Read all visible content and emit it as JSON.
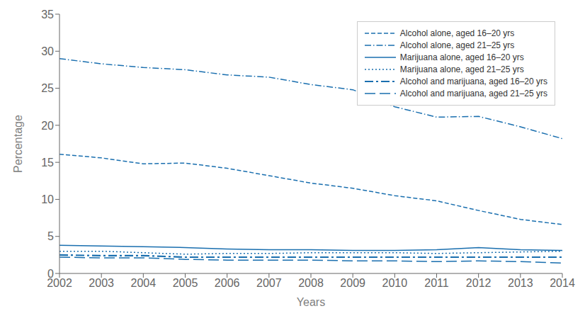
{
  "chart_data": {
    "type": "line",
    "xlabel": "Years",
    "ylabel": "Percentage",
    "x": [
      2002,
      2003,
      2004,
      2005,
      2006,
      2007,
      2008,
      2009,
      2010,
      2011,
      2012,
      2013,
      2014
    ],
    "xlim": [
      2002,
      2014
    ],
    "xticks": [
      2002,
      2003,
      2004,
      2005,
      2006,
      2007,
      2008,
      2009,
      2010,
      2011,
      2012,
      2013,
      2014
    ],
    "ylim": [
      0,
      35
    ],
    "yticks": [
      0,
      5,
      10,
      15,
      20,
      25,
      30,
      35
    ],
    "legend": "upper right",
    "series": [
      {
        "name": "Alcohol alone, aged 16–20 yrs",
        "color": "#1a6faf",
        "line_style": "dashed",
        "values": [
          16.1,
          15.6,
          14.8,
          14.9,
          14.2,
          13.2,
          12.2,
          11.5,
          10.5,
          9.8,
          8.5,
          7.3,
          6.6
        ]
      },
      {
        "name": "Alcohol alone, aged 21–25 yrs",
        "color": "#1a6faf",
        "line_style": "dashdot",
        "values": [
          29.0,
          28.3,
          27.8,
          27.5,
          26.8,
          26.5,
          25.5,
          24.8,
          22.5,
          21.1,
          21.2,
          19.8,
          18.2
        ]
      },
      {
        "name": "Marijuana alone, aged 16–20 yrs",
        "color": "#1a6faf",
        "line_style": "solid",
        "values": [
          3.8,
          3.7,
          3.6,
          3.5,
          3.3,
          3.2,
          3.2,
          3.1,
          3.1,
          3.2,
          3.5,
          3.2,
          3.1
        ]
      },
      {
        "name": "Marijuana alone, aged 21–25 yrs",
        "color": "#1a6faf",
        "line_style": "dotted",
        "values": [
          3.0,
          3.0,
          2.8,
          2.6,
          2.7,
          2.7,
          2.8,
          2.8,
          2.8,
          2.7,
          2.8,
          2.9,
          3.0
        ]
      },
      {
        "name": "Alcohol and marijuana, aged 16–20 yrs",
        "color": "#1a6faf",
        "line_style": "longdashdot",
        "values": [
          2.5,
          2.4,
          2.4,
          2.2,
          2.2,
          2.2,
          2.2,
          2.2,
          2.2,
          2.2,
          2.2,
          2.2,
          2.2
        ]
      },
      {
        "name": "Alcohol and marijuana, aged 21–25 yrs",
        "color": "#1a6faf",
        "line_style": "longdash",
        "values": [
          2.2,
          2.1,
          2.1,
          1.9,
          1.8,
          1.8,
          1.8,
          1.7,
          1.7,
          1.6,
          1.7,
          1.6,
          1.4
        ]
      }
    ]
  }
}
